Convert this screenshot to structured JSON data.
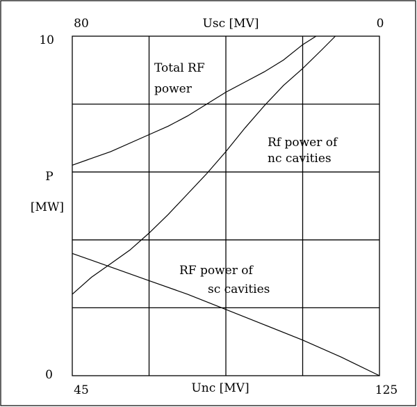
{
  "chart_data": {
    "type": "line",
    "xlabel_bottom": "Unc [MV]",
    "xlabel_top": "Usc [MV]",
    "ylabel_line1": "P",
    "ylabel_line2": "[MW]",
    "x_bottom_range": [
      45,
      125
    ],
    "x_top_range": [
      80,
      0
    ],
    "ylim": [
      0,
      10
    ],
    "x_bottom_ticks": [
      "45",
      "125"
    ],
    "x_top_ticks": [
      "80",
      "0"
    ],
    "y_ticks": [
      "0",
      "10"
    ],
    "grid": true,
    "series": [
      {
        "label_lines": [
          "Total RF",
          "power"
        ],
        "x": [
          45,
          55,
          65,
          70,
          75,
          80,
          85,
          90,
          95,
          100,
          105,
          108.5
        ],
        "y": [
          6.2,
          6.6,
          7.1,
          7.35,
          7.65,
          8.0,
          8.35,
          8.65,
          8.95,
          9.3,
          9.75,
          10.0
        ]
      },
      {
        "label_lines": [
          "Rf power of",
          "nc cavities"
        ],
        "x": [
          45,
          50,
          55,
          60,
          65,
          70,
          75,
          80,
          85,
          90,
          95,
          100,
          105,
          110,
          113.5
        ],
        "y": [
          2.4,
          2.9,
          3.3,
          3.7,
          4.2,
          4.75,
          5.35,
          5.95,
          6.6,
          7.3,
          7.95,
          8.55,
          9.05,
          9.6,
          10.0
        ]
      },
      {
        "label_lines": [
          "RF power of",
          "sc cavities"
        ],
        "x": [
          45,
          55,
          65,
          75,
          85,
          95,
          105,
          115,
          125
        ],
        "y": [
          3.6,
          3.2,
          2.8,
          2.4,
          1.95,
          1.5,
          1.05,
          0.55,
          0.0
        ]
      }
    ]
  }
}
